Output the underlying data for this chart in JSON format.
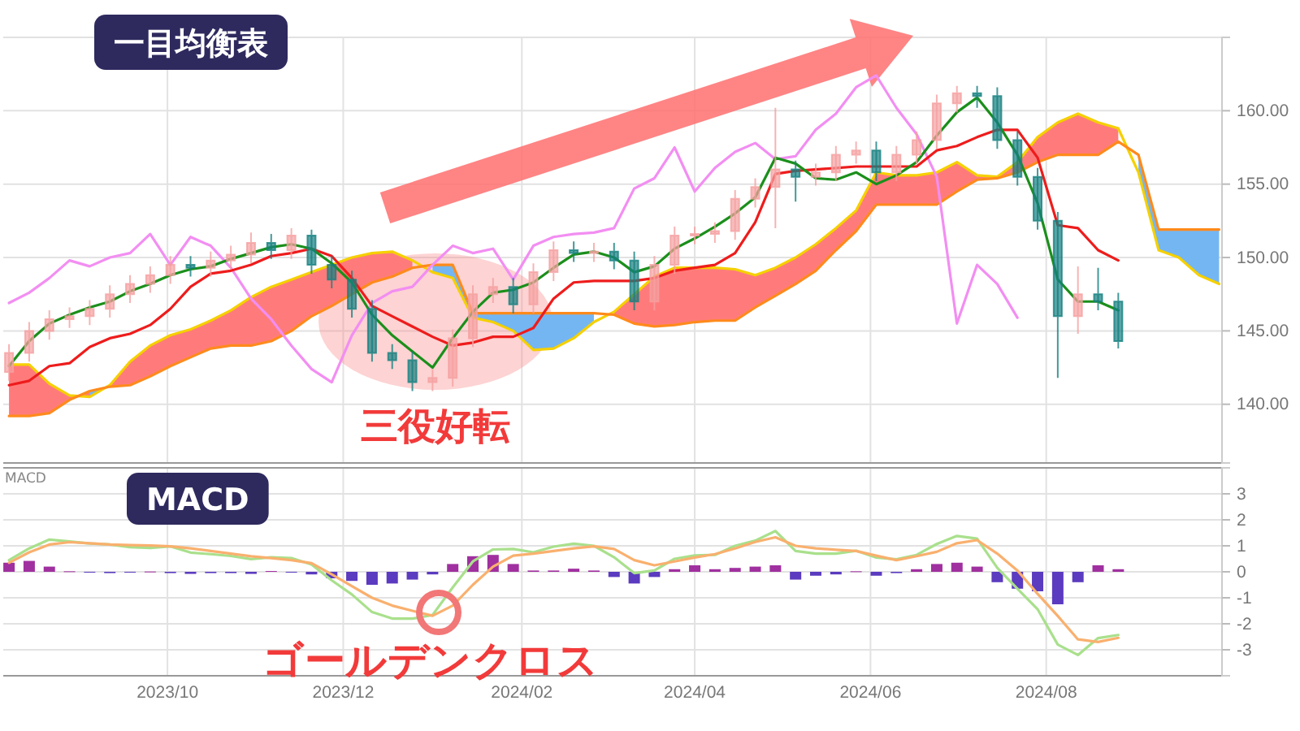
{
  "chart_data": [
    {
      "type": "candlestick",
      "title": "一目均衡表",
      "annotations": [
        "三役好転"
      ],
      "x": [
        "2023-08-07",
        "2023-08-14",
        "2023-08-21",
        "2023-08-28",
        "2023-09-04",
        "2023-09-11",
        "2023-09-18",
        "2023-09-25",
        "2023-10-02",
        "2023-10-09",
        "2023-10-16",
        "2023-10-23",
        "2023-10-30",
        "2023-11-06",
        "2023-11-13",
        "2023-11-20",
        "2023-11-27",
        "2023-12-04",
        "2023-12-11",
        "2023-12-18",
        "2023-12-25",
        "2024-01-01",
        "2024-01-08",
        "2024-01-15",
        "2024-01-22",
        "2024-01-29",
        "2024-02-05",
        "2024-02-12",
        "2024-02-19",
        "2024-02-26",
        "2024-03-04",
        "2024-03-11",
        "2024-03-18",
        "2024-03-25",
        "2024-04-01",
        "2024-04-08",
        "2024-04-15",
        "2024-04-22",
        "2024-04-29",
        "2024-05-06",
        "2024-05-13",
        "2024-05-20",
        "2024-05-27",
        "2024-06-03",
        "2024-06-10",
        "2024-06-17",
        "2024-06-24",
        "2024-07-01",
        "2024-07-08",
        "2024-07-15",
        "2024-07-22",
        "2024-07-29",
        "2024-08-05",
        "2024-08-12",
        "2024-08-19",
        "2024-08-26"
      ],
      "ohlc": [
        [
          142.2,
          144.1,
          141.6,
          143.5
        ],
        [
          143.5,
          145.6,
          142.9,
          145
        ],
        [
          145,
          146.4,
          144.4,
          145.8
        ],
        [
          145.8,
          146.6,
          145.2,
          146
        ],
        [
          146,
          147.1,
          145.4,
          146.5
        ],
        [
          146.5,
          148.1,
          145.9,
          147.5
        ],
        [
          147.5,
          148.8,
          146.9,
          148.2
        ],
        [
          148.2,
          149.4,
          147.6,
          148.8
        ],
        [
          148.8,
          150.1,
          148.2,
          149.5
        ],
        [
          149.5,
          150.1,
          148.7,
          149.3
        ],
        [
          149.3,
          150.4,
          148.7,
          149.8
        ],
        [
          149.8,
          150.8,
          149.2,
          150.2
        ],
        [
          150.2,
          151.7,
          149.6,
          151
        ],
        [
          151,
          151.6,
          149.9,
          150.5
        ],
        [
          150.5,
          152,
          149.9,
          151.5
        ],
        [
          151.5,
          151.9,
          148.9,
          149.5
        ],
        [
          149.5,
          150.1,
          147.9,
          148.5
        ],
        [
          148.5,
          149.1,
          145.9,
          146.5
        ],
        [
          146.5,
          147.1,
          142.9,
          143.5
        ],
        [
          143.5,
          144.1,
          142.4,
          143
        ],
        [
          143,
          143.6,
          140.9,
          141.5
        ],
        [
          141.5,
          142.4,
          140.9,
          141.8
        ],
        [
          141.8,
          145.1,
          141.2,
          144.5
        ],
        [
          144.5,
          148.1,
          143.9,
          147.5
        ],
        [
          147.5,
          148.6,
          146.9,
          148
        ],
        [
          148,
          148.6,
          146.2,
          146.8
        ],
        [
          146.8,
          149.6,
          146.2,
          149
        ],
        [
          149,
          151.1,
          148.4,
          150.5
        ],
        [
          150.5,
          151.1,
          149.7,
          150.3
        ],
        [
          150.3,
          151,
          149.7,
          150.4
        ],
        [
          150.4,
          151,
          149.2,
          149.8
        ],
        [
          149.8,
          150.4,
          146.4,
          147
        ],
        [
          147,
          150.1,
          146.4,
          149.5
        ],
        [
          149.5,
          152.1,
          148.9,
          151.5
        ],
        [
          151.5,
          152.1,
          150.9,
          151.6
        ],
        [
          151.6,
          152.4,
          151,
          151.8
        ],
        [
          151.8,
          154.6,
          151.2,
          154
        ],
        [
          154,
          155.4,
          153.4,
          154.8
        ],
        [
          154.8,
          160.2,
          152,
          156
        ],
        [
          156,
          156.6,
          153.8,
          155.5
        ],
        [
          155.5,
          156.4,
          154.9,
          155.8
        ],
        [
          155.8,
          157.6,
          155.2,
          157
        ],
        [
          157,
          157.9,
          156.4,
          157.3
        ],
        [
          157.3,
          157.9,
          155.2,
          155.8
        ],
        [
          155.8,
          157.6,
          155.2,
          157
        ],
        [
          157,
          158.6,
          156.4,
          158
        ],
        [
          158,
          161.1,
          157.4,
          160.5
        ],
        [
          160.5,
          161.7,
          159.9,
          161.2
        ],
        [
          161.2,
          161.7,
          160.2,
          161
        ],
        [
          161,
          161.6,
          157.4,
          158
        ],
        [
          158,
          158.6,
          154.9,
          155.5
        ],
        [
          155.5,
          156.1,
          151.9,
          152.5
        ],
        [
          152.5,
          153.1,
          141.8,
          146
        ],
        [
          146,
          149.4,
          144.8,
          147.5
        ],
        [
          147.5,
          149.3,
          146.4,
          147
        ],
        [
          147,
          147.6,
          143.8,
          144.3
        ]
      ],
      "colors": [
        "#f5a0a0",
        "#f5a0a0",
        "#f5a0a0",
        "#f5a0a0",
        "#f5a0a0",
        "#f5a0a0",
        "#f5a0a0",
        "#f5a0a0",
        "#f5a0a0",
        "#157f80",
        "#f5a0a0",
        "#f5a0a0",
        "#f5a0a0",
        "#157f80",
        "#f5a0a0",
        "#157f80",
        "#157f80",
        "#157f80",
        "#157f80",
        "#157f80",
        "#157f80",
        "#f5a0a0",
        "#f5a0a0",
        "#f5a0a0",
        "#f5a0a0",
        "#157f80",
        "#f5a0a0",
        "#f5a0a0",
        "#157f80",
        "#f5a0a0",
        "#157f80",
        "#157f80",
        "#f5a0a0",
        "#f5a0a0",
        "#f5a0a0",
        "#f5a0a0",
        "#f5a0a0",
        "#f5a0a0",
        "#f5a0a0",
        "#157f80",
        "#f5a0a0",
        "#f5a0a0",
        "#f5a0a0",
        "#157f80",
        "#f5a0a0",
        "#f5a0a0",
        "#f5a0a0",
        "#f5a0a0",
        "#157f80",
        "#157f80",
        "#157f80",
        "#157f80",
        "#157f80",
        "#f5a0a0",
        "#157f80",
        "#157f80"
      ],
      "series": [
        {
          "type": "line",
          "color": "#f5d000",
          "x": [
            "2023-08-07",
            "2023-08-14",
            "2023-08-21",
            "2023-08-28",
            "2023-09-04",
            "2023-09-11",
            "2023-09-18",
            "2023-09-25",
            "2023-10-02",
            "2023-10-09",
            "2023-10-16",
            "2023-10-23",
            "2023-10-30",
            "2023-11-06",
            "2023-11-13",
            "2023-11-20",
            "2023-11-27",
            "2023-12-04",
            "2023-12-11",
            "2023-12-18",
            "2023-12-25",
            "2024-01-01",
            "2024-01-08",
            "2024-01-15",
            "2024-01-22",
            "2024-01-29",
            "2024-02-05",
            "2024-02-12",
            "2024-02-19",
            "2024-02-26",
            "2024-03-04",
            "2024-03-11",
            "2024-03-18",
            "2024-03-25",
            "2024-04-01",
            "2024-04-08",
            "2024-04-15",
            "2024-04-22",
            "2024-04-29",
            "2024-05-06",
            "2024-05-13",
            "2024-05-20",
            "2024-05-27",
            "2024-06-03",
            "2024-06-10",
            "2024-06-17",
            "2024-06-24",
            "2024-07-01",
            "2024-07-08",
            "2024-07-15",
            "2024-07-22",
            "2024-07-29",
            "2024-08-05",
            "2024-08-12",
            "2024-08-19",
            "2024-08-26",
            "2024-09-02",
            "2024-09-09",
            "2024-09-16",
            "2024-09-23",
            "2024-09-30"
          ],
          "values": [
            142.7,
            142.7,
            141.4,
            140.6,
            140.5,
            141.3,
            142.9,
            144,
            144.7,
            145.1,
            145.7,
            146.4,
            147.3,
            148,
            148.5,
            149,
            149.5,
            150,
            150.3,
            150.4,
            149.8,
            149.0,
            148.6,
            145.9,
            145.6,
            145,
            143.7,
            143.8,
            144.5,
            145.6,
            146.3,
            147.5,
            148.7,
            149.3,
            149.3,
            149.3,
            149.2,
            148.8,
            149.3,
            150,
            150.9,
            152,
            153.2,
            155.8,
            155.6,
            155.6,
            155.8,
            156.5,
            155.6,
            155.5,
            156.5,
            158.2,
            159.2,
            159.8,
            159.2,
            158.8,
            155.8,
            150.5,
            150,
            148.8,
            148.2
          ],
          "upper": [
            142.7,
            142.7,
            141.4,
            140.6,
            140.5,
            141.3,
            142.9,
            144,
            144.7,
            145.1,
            145.7,
            146.4,
            147.3,
            148,
            148.5,
            149,
            149.5,
            150,
            150.3,
            150.4,
            149.8,
            null,
            null,
            null,
            null,
            null,
            null,
            null,
            null,
            null,
            146.3,
            147.5,
            148.7,
            149.3,
            149.3,
            149.3,
            149.2,
            148.8,
            149.3,
            150,
            150.9,
            152,
            153.2,
            155.8,
            155.6,
            155.6,
            155.8,
            156.5,
            155.6,
            155.5,
            156.5,
            158.2,
            159.2,
            159.8,
            159.2,
            158.8,
            null,
            null,
            null,
            null,
            null
          ],
          "lower": [
            139.2,
            139.2,
            139.4,
            140.3,
            140.9,
            141.2,
            141.3,
            141.9,
            142.6,
            143.2,
            143.8,
            144,
            144,
            144.3,
            145,
            146,
            146.7,
            147.5,
            148.3,
            148.7,
            149.3,
            null,
            null,
            null,
            null,
            null,
            null,
            null,
            null,
            null,
            146.1,
            145.5,
            145.3,
            145.4,
            145.6,
            145.7,
            145.7,
            146.6,
            147.4,
            148.2,
            149.1,
            150.5,
            151.8,
            153.6,
            153.6,
            153.6,
            153.6,
            154.5,
            155.3,
            155.4,
            155.8,
            156.5,
            157,
            157,
            157,
            157.9,
            null,
            null,
            null,
            null,
            null
          ],
          "colors": [
            "#ff7b7b",
            "#ff7b7b",
            "#ff7b7b",
            "#ff7b7b",
            "#ff7b7b",
            "#ff7b7b",
            "#ff7b7b",
            "#ff7b7b",
            "#ff7b7b",
            "#ff7b7b",
            "#ff7b7b",
            "#ff7b7b",
            "#ff7b7b",
            "#ff7b7b",
            "#ff7b7b",
            "#ff7b7b",
            "#ff7b7b",
            "#ff7b7b",
            "#ff7b7b",
            "#ff7b7b",
            "#ff7b7b",
            null,
            null,
            null,
            null,
            null,
            null,
            null,
            null,
            null,
            "#ff7b7b",
            "#ff7b7b",
            "#ff7b7b",
            "#ff7b7b",
            "#ff7b7b",
            "#ff7b7b",
            "#ff7b7b",
            "#ff7b7b",
            "#ff7b7b",
            "#ff7b7b",
            "#ff7b7b",
            "#ff7b7b",
            "#ff7b7b",
            "#ff7b7b",
            "#ff7b7b",
            "#ff7b7b",
            "#ff7b7b",
            "#ff7b7b",
            "#ff7b7b",
            "#ff7b7b",
            "#ff7b7b",
            "#ff7b7b",
            "#ff7b7b",
            "#ff7b7b",
            "#ff7b7b",
            "#ff7b7b",
            null,
            null,
            null,
            null,
            null
          ]
        },
        {
          "type": "line",
          "color": "#ff8a1c",
          "x": [
            "2023-08-07",
            "2023-08-14",
            "2023-08-21",
            "2023-08-28",
            "2023-09-04",
            "2023-09-11",
            "2023-09-18",
            "2023-09-25",
            "2023-10-02",
            "2023-10-09",
            "2023-10-16",
            "2023-10-23",
            "2023-10-30",
            "2023-11-06",
            "2023-11-13",
            "2023-11-20",
            "2023-11-27",
            "2023-12-04",
            "2023-12-11",
            "2023-12-18",
            "2023-12-25",
            "2024-01-01",
            "2024-01-08",
            "2024-01-15",
            "2024-01-22",
            "2024-01-29",
            "2024-02-05",
            "2024-02-12",
            "2024-02-19",
            "2024-02-26",
            "2024-03-04",
            "2024-03-11",
            "2024-03-18",
            "2024-03-25",
            "2024-04-01",
            "2024-04-08",
            "2024-04-15",
            "2024-04-22",
            "2024-04-29",
            "2024-05-06",
            "2024-05-13",
            "2024-05-20",
            "2024-05-27",
            "2024-06-03",
            "2024-06-10",
            "2024-06-17",
            "2024-06-24",
            "2024-07-01",
            "2024-07-08",
            "2024-07-15",
            "2024-07-22",
            "2024-07-29",
            "2024-08-05",
            "2024-08-12",
            "2024-08-19",
            "2024-08-26",
            "2024-09-02",
            "2024-09-09",
            "2024-09-16",
            "2024-09-23",
            "2024-09-30"
          ],
          "values": [
            139.2,
            139.2,
            139.4,
            140.3,
            140.9,
            141.2,
            141.3,
            141.9,
            142.6,
            143.2,
            143.8,
            144,
            144,
            144.3,
            145,
            146,
            146.7,
            147.5,
            148.3,
            148.7,
            149.3,
            149.5,
            149.5,
            146.2,
            146.2,
            146.2,
            146.2,
            146.2,
            146.2,
            146.2,
            146.1,
            145.5,
            145.3,
            145.4,
            145.6,
            145.7,
            145.7,
            146.6,
            147.4,
            148.2,
            149.1,
            150.5,
            151.8,
            153.6,
            153.6,
            153.6,
            153.6,
            154.5,
            155.3,
            155.4,
            155.8,
            156.5,
            157,
            157,
            157,
            157.9,
            157,
            151.9,
            151.9,
            151.9,
            151.9
          ],
          "upper": [
            null,
            null,
            null,
            null,
            140.9,
            141.2,
            null,
            null,
            null,
            null,
            null,
            null,
            null,
            null,
            null,
            null,
            null,
            null,
            null,
            null,
            null,
            149.5,
            149.5,
            146.2,
            146.2,
            146.2,
            146.2,
            146.2,
            146.2,
            146.2,
            null,
            null,
            null,
            null,
            null,
            null,
            null,
            null,
            null,
            null,
            null,
            null,
            null,
            null,
            null,
            null,
            null,
            null,
            null,
            null,
            null,
            null,
            null,
            null,
            null,
            null,
            157,
            151.9,
            151.9,
            151.9,
            151.9
          ],
          "lower": [
            null,
            null,
            null,
            null,
            140.5,
            141.3,
            null,
            null,
            null,
            null,
            null,
            null,
            null,
            null,
            null,
            null,
            null,
            null,
            null,
            null,
            null,
            149.0,
            148.6,
            145.9,
            145.6,
            145,
            143.7,
            143.8,
            144.5,
            145.6,
            null,
            null,
            null,
            null,
            null,
            null,
            null,
            null,
            null,
            null,
            null,
            null,
            null,
            null,
            null,
            null,
            null,
            null,
            null,
            null,
            null,
            null,
            null,
            null,
            null,
            null,
            155.8,
            150.5,
            150,
            148.8,
            148.2
          ],
          "colors": [
            null,
            null,
            null,
            null,
            "#74b6f2",
            "#74b6f2",
            null,
            null,
            null,
            null,
            null,
            null,
            null,
            null,
            null,
            null,
            null,
            null,
            null,
            null,
            null,
            "#74b6f2",
            "#74b6f2",
            "#74b6f2",
            "#74b6f2",
            "#74b6f2",
            "#74b6f2",
            "#74b6f2",
            "#74b6f2",
            "#74b6f2",
            null,
            null,
            null,
            null,
            null,
            null,
            null,
            null,
            null,
            null,
            null,
            null,
            null,
            null,
            null,
            null,
            null,
            null,
            null,
            null,
            null,
            null,
            null,
            null,
            null,
            null,
            "#74b6f2",
            "#74b6f2",
            "#74b6f2",
            "#74b6f2",
            "#74b6f2"
          ]
        },
        {
          "type": "line",
          "color": "#f28ef2",
          "x": [
            "2023-08-07",
            "2023-08-14",
            "2023-08-21",
            "2023-08-28",
            "2023-09-04",
            "2023-09-11",
            "2023-09-18",
            "2023-09-25",
            "2023-10-02",
            "2023-10-09",
            "2023-10-16",
            "2023-10-23",
            "2023-10-30",
            "2023-11-06",
            "2023-11-13",
            "2023-11-20",
            "2023-11-27",
            "2023-12-04",
            "2023-12-11",
            "2023-12-18",
            "2023-12-25",
            "2024-01-01",
            "2024-01-08",
            "2024-01-15",
            "2024-01-22",
            "2024-01-29",
            "2024-02-05",
            "2024-02-12",
            "2024-02-19",
            "2024-02-26",
            "2024-03-04",
            "2024-03-11",
            "2024-03-18",
            "2024-03-25",
            "2024-04-01",
            "2024-04-08",
            "2024-04-15",
            "2024-04-22",
            "2024-04-29",
            "2024-05-06",
            "2024-05-13",
            "2024-05-20",
            "2024-05-27",
            "2024-06-03",
            "2024-06-10",
            "2024-06-17",
            "2024-06-24",
            "2024-07-01",
            "2024-07-08",
            "2024-07-15",
            "2024-07-22"
          ],
          "values": [
            146.9,
            147.6,
            148.6,
            149.8,
            149.4,
            150,
            150.3,
            151.6,
            149.5,
            151.4,
            150.8,
            149.3,
            147.2,
            145.8,
            144,
            142.4,
            141.5,
            144.7,
            146.9,
            147.7,
            148,
            149.5,
            150.8,
            150.3,
            150.6,
            148.5,
            150.8,
            151.4,
            151.6,
            151.7,
            152,
            154.7,
            155.4,
            157.5,
            154.5,
            156.1,
            157.2,
            157.8,
            156.7,
            156.9,
            158.7,
            159.8,
            161.6,
            162.4,
            160.2,
            158.4,
            155.5,
            145.5,
            149.5,
            148.2,
            145.9
          ]
        },
        {
          "type": "line",
          "color": "#ee1c1c",
          "values": [
            141.3,
            141.6,
            142.6,
            142.8,
            143.9,
            144.5,
            144.8,
            145.4,
            146.5,
            148,
            148.9,
            149.1,
            149.5,
            150.1,
            150.3,
            150.6,
            150.1,
            148.6,
            146.7,
            146,
            145.3,
            144.6,
            144,
            144.2,
            144.6,
            144.6,
            145.2,
            147.2,
            148.3,
            148.4,
            148.4,
            148.4,
            148.6,
            149.1,
            149.3,
            149.5,
            150.3,
            152.4,
            155.7,
            155.9,
            156,
            156.1,
            156.2,
            156.2,
            156.2,
            156.2,
            157.3,
            157.6,
            158.2,
            158.7,
            158.7,
            156.8,
            152.2,
            152,
            150.5,
            149.8
          ]
        },
        {
          "type": "line",
          "color": "#1b8f1b",
          "values": [
            142.6,
            144.3,
            145.5,
            146.1,
            146.6,
            147,
            147.7,
            148.2,
            148.8,
            149.2,
            149.4,
            149.9,
            150.3,
            150.7,
            150.9,
            150.6,
            149.6,
            148.3,
            146.1,
            144.7,
            143.6,
            142.5,
            144.5,
            146.3,
            147.6,
            147.8,
            148.3,
            149.3,
            150.2,
            150.4,
            150,
            149,
            149.4,
            150.6,
            151.3,
            152.1,
            153,
            154.1,
            156.8,
            156.4,
            155.4,
            155.3,
            155.8,
            155,
            155.6,
            156.5,
            158.3,
            159.9,
            160.9,
            159.2,
            157,
            153.7,
            148.5,
            147,
            147,
            146.4
          ]
        }
      ],
      "xlim": [
        "2023-08-05",
        "2024-10-01"
      ],
      "xticks": [
        {
          "value": "2023-10-01",
          "label": null
        },
        {
          "value": "2023-12-01",
          "label": null
        },
        {
          "value": "2024-02-01",
          "label": null
        },
        {
          "value": "2024-04-01",
          "label": null
        },
        {
          "value": "2024-06-01",
          "label": null
        },
        {
          "value": "2024-08-01",
          "label": null
        }
      ],
      "ylim": [
        136,
        165
      ],
      "yticks": [
        {
          "value": 140,
          "label": "140.00"
        },
        {
          "value": 145,
          "label": "145.00"
        },
        {
          "value": 150,
          "label": "150.00"
        },
        {
          "value": 155,
          "label": "155.00"
        },
        {
          "value": 160,
          "label": "160.00"
        }
      ],
      "tick_labels": "y",
      "grid": true
    },
    {
      "type": "line",
      "title": "MACD",
      "subtitle": "MACD",
      "annotations": [
        "ゴールデンクロス"
      ],
      "x": [
        "2023-08-07",
        "2023-08-14",
        "2023-08-21",
        "2023-08-28",
        "2023-09-04",
        "2023-09-11",
        "2023-09-18",
        "2023-09-25",
        "2023-10-02",
        "2023-10-09",
        "2023-10-16",
        "2023-10-23",
        "2023-10-30",
        "2023-11-06",
        "2023-11-13",
        "2023-11-20",
        "2023-11-27",
        "2023-12-04",
        "2023-12-11",
        "2023-12-18",
        "2023-12-25",
        "2024-01-01",
        "2024-01-08",
        "2024-01-15",
        "2024-01-22",
        "2024-01-29",
        "2024-02-05",
        "2024-02-12",
        "2024-02-19",
        "2024-02-26",
        "2024-03-04",
        "2024-03-11",
        "2024-03-18",
        "2024-03-25",
        "2024-04-01",
        "2024-04-08",
        "2024-04-15",
        "2024-04-22",
        "2024-04-29",
        "2024-05-06",
        "2024-05-13",
        "2024-05-20",
        "2024-05-27",
        "2024-06-03",
        "2024-06-10",
        "2024-06-17",
        "2024-06-24",
        "2024-07-01",
        "2024-07-08",
        "2024-07-15",
        "2024-07-22",
        "2024-07-29",
        "2024-08-05",
        "2024-08-12",
        "2024-08-19",
        "2024-08-26"
      ],
      "series": [
        {
          "type": "bar",
          "colors": [
            "#a0309f",
            "#a0309f",
            "#a0309f",
            "#a0309f",
            "#5b3bbf",
            "#5b3bbf",
            "#5b3bbf",
            "#a0309f",
            "#5b3bbf",
            "#5b3bbf",
            "#5b3bbf",
            "#5b3bbf",
            "#5b3bbf",
            "#a0309f",
            "#5b3bbf",
            "#5b3bbf",
            "#5b3bbf",
            "#5b3bbf",
            "#5b3bbf",
            "#5b3bbf",
            "#5b3bbf",
            "#5b3bbf",
            "#a0309f",
            "#a0309f",
            "#a0309f",
            "#a0309f",
            "#a0309f",
            "#a0309f",
            "#a0309f",
            "#a0309f",
            "#5b3bbf",
            "#5b3bbf",
            "#5b3bbf",
            "#a0309f",
            "#a0309f",
            "#a0309f",
            "#a0309f",
            "#a0309f",
            "#a0309f",
            "#5b3bbf",
            "#5b3bbf",
            "#5b3bbf",
            "#a0309f",
            "#5b3bbf",
            "#5b3bbf",
            "#a0309f",
            "#a0309f",
            "#a0309f",
            "#a0309f",
            "#5b3bbf",
            "#5b3bbf",
            "#5b3bbf",
            "#5b3bbf",
            "#5b3bbf",
            "#a0309f",
            "#a0309f"
          ],
          "values": [
            0.35,
            0.42,
            0.2,
            0.02,
            -0.02,
            -0.05,
            -0.03,
            0.01,
            -0.05,
            -0.08,
            -0.05,
            -0.05,
            -0.08,
            0.03,
            -0.02,
            -0.1,
            -0.25,
            -0.35,
            -0.5,
            -0.45,
            -0.3,
            -0.1,
            0.3,
            0.6,
            0.65,
            0.3,
            0.05,
            0.05,
            0.12,
            0.05,
            -0.2,
            -0.45,
            -0.2,
            0.1,
            0.25,
            0.1,
            0.15,
            0.2,
            0.25,
            -0.3,
            -0.15,
            -0.1,
            0.02,
            -0.15,
            -0.05,
            0.1,
            0.3,
            0.35,
            0.2,
            -0.4,
            -0.65,
            -0.75,
            -1.25,
            -0.4,
            0.25,
            0.1
          ]
        },
        {
          "type": "line",
          "color": "#a9e08c",
          "values": [
            0.45,
            0.9,
            1.24,
            1.17,
            1.09,
            1.05,
            0.95,
            0.92,
            0.98,
            0.74,
            0.68,
            0.61,
            0.49,
            0.56,
            0.53,
            0.28,
            -0.33,
            -0.87,
            -1.55,
            -1.8,
            -1.8,
            -1.66,
            -0.6,
            0.4,
            0.86,
            0.88,
            0.75,
            0.97,
            1.08,
            1,
            0.56,
            -0.05,
            0.05,
            0.5,
            0.63,
            0.65,
            1.0,
            1.2,
            1.57,
            0.8,
            0.7,
            0.7,
            0.81,
            0.55,
            0.48,
            0.65,
            1.07,
            1.38,
            1.28,
            0.15,
            -0.65,
            -1.44,
            -2.8,
            -3.2,
            -2.55,
            -2.43
          ]
        },
        {
          "type": "line",
          "color": "#f9b06e",
          "values": [
            0.35,
            0.75,
            1.05,
            1.14,
            1.1,
            1.05,
            1.03,
            1.01,
            0.98,
            0.9,
            0.8,
            0.7,
            0.6,
            0.53,
            0.45,
            0.33,
            -0.1,
            -0.55,
            -1.0,
            -1.3,
            -1.5,
            -1.69,
            -1.3,
            -0.5,
            0.2,
            0.62,
            0.7,
            0.8,
            0.9,
            0.98,
            0.88,
            0.45,
            0.25,
            0.4,
            0.55,
            0.68,
            0.9,
            1.15,
            1.33,
            1.0,
            0.9,
            0.85,
            0.8,
            0.62,
            0.45,
            0.6,
            0.77,
            1.1,
            1.22,
            0.7,
            0.05,
            -0.85,
            -1.7,
            -2.6,
            -2.7,
            -2.54
          ]
        }
      ],
      "xlim": [
        "2023-08-05",
        "2024-10-01"
      ],
      "xticks": [
        {
          "value": "2023-10-01",
          "label": "2023/10"
        },
        {
          "value": "2023-12-01",
          "label": "2023/12"
        },
        {
          "value": "2024-02-01",
          "label": "2024/02"
        },
        {
          "value": "2024-04-01",
          "label": "2024/04"
        },
        {
          "value": "2024-06-01",
          "label": "2024/06"
        },
        {
          "value": "2024-08-01",
          "label": "2024/08"
        }
      ],
      "ylim": [
        -4,
        4
      ],
      "yticks": [
        -3,
        -2,
        -1,
        0,
        1,
        2,
        3
      ],
      "grid": true
    }
  ]
}
